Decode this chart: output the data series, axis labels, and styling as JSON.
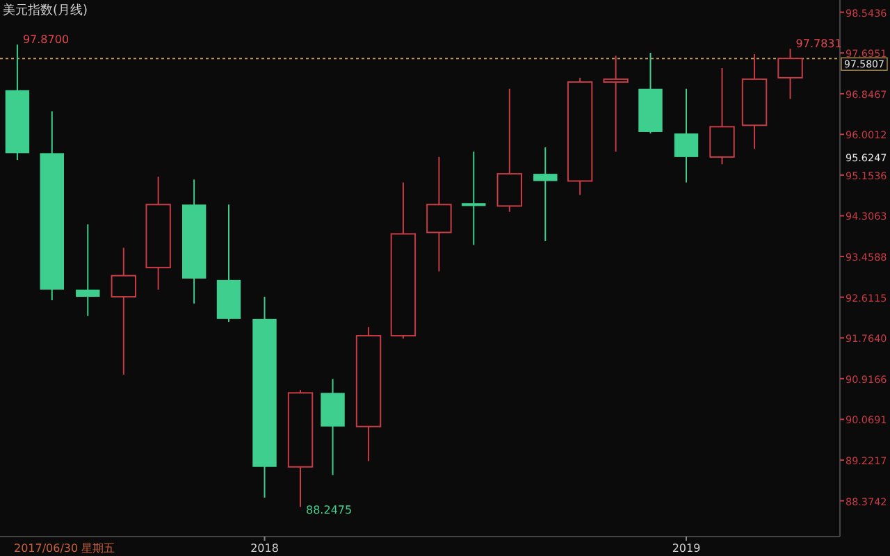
{
  "chart_data": {
    "type": "candlestick",
    "title": "美元指数(月线)",
    "x": [
      "2017-06",
      "2017-07",
      "2017-08",
      "2017-09",
      "2017-10",
      "2017-11",
      "2017-12",
      "2018-01",
      "2018-02",
      "2018-03",
      "2018-04",
      "2018-05",
      "2018-06",
      "2018-07",
      "2018-08",
      "2018-09",
      "2018-10",
      "2018-11",
      "2018-12",
      "2019-01",
      "2019-02",
      "2019-03",
      "2019-04"
    ],
    "ohlc": [
      [
        96.92,
        97.87,
        95.47,
        95.61
      ],
      [
        95.61,
        96.48,
        92.55,
        92.77
      ],
      [
        92.77,
        94.13,
        92.22,
        92.62
      ],
      [
        92.62,
        93.64,
        91.0,
        93.06
      ],
      [
        93.23,
        95.12,
        92.77,
        94.54
      ],
      [
        94.54,
        95.06,
        92.48,
        93.0
      ],
      [
        92.97,
        94.54,
        92.1,
        92.16
      ],
      [
        92.16,
        92.62,
        88.44,
        89.08
      ],
      [
        89.08,
        90.68,
        88.2475,
        90.62
      ],
      [
        90.62,
        90.91,
        88.91,
        89.92
      ],
      [
        89.92,
        91.99,
        89.2,
        91.81
      ],
      [
        91.81,
        95.0,
        91.75,
        93.93
      ],
      [
        93.96,
        95.53,
        93.15,
        94.54
      ],
      [
        94.57,
        95.64,
        93.7,
        94.51
      ],
      [
        94.51,
        96.95,
        94.39,
        95.18
      ],
      [
        95.18,
        95.73,
        93.78,
        95.03
      ],
      [
        95.03,
        97.18,
        94.74,
        97.09
      ],
      [
        97.09,
        97.64,
        95.64,
        97.15
      ],
      [
        96.95,
        97.7,
        96.02,
        96.05
      ],
      [
        96.02,
        96.95,
        95.0,
        95.53
      ],
      [
        95.53,
        97.38,
        95.38,
        96.16
      ],
      [
        96.19,
        97.67,
        95.7,
        97.15
      ],
      [
        97.18,
        97.7831,
        96.74,
        97.5807
      ]
    ],
    "colors": [
      "#3ecf8e",
      "#3ecf8e",
      "#3ecf8e",
      "#c83c46",
      "#c83c46",
      "#3ecf8e",
      "#3ecf8e",
      "#3ecf8e",
      "#c83c46",
      "#3ecf8e",
      "#c83c46",
      "#c83c46",
      "#c83c46",
      "#3ecf8e",
      "#c83c46",
      "#3ecf8e",
      "#c83c46",
      "#c83c46",
      "#3ecf8e",
      "#3ecf8e",
      "#c83c46",
      "#c83c46",
      "#c83c46"
    ],
    "xlim": [
      "2017-05-17",
      "2019-05-14"
    ],
    "xticks": [
      {
        "value": "2018-01",
        "label": "2018"
      },
      {
        "value": "2019-01",
        "label": "2019"
      }
    ],
    "ylim": [
      87.63,
      98.74
    ],
    "yticks": [
      98.5436,
      97.6951,
      96.8467,
      96.0012,
      95.1536,
      94.3063,
      93.4588,
      92.6115,
      {
        "value": 91.764,
        "label": "91.7640"
      },
      90.9166,
      90.0691,
      89.2217,
      88.3742
    ],
    "ref_lines": [
      {
        "axis": "y",
        "value": 97.5807,
        "label": "97.5807",
        "color": "#c8a060",
        "line_style": "dotted"
      }
    ],
    "annotations": [
      {
        "text": "97.8700",
        "x": "2017-06",
        "y": 97.87
      },
      {
        "text": "88.2475",
        "x": "2018-02",
        "y": 88.2475
      },
      {
        "text": "97.7831",
        "x": "2019-04",
        "y": 97.7831
      },
      "95.6247",
      "2017/06/30 星期五"
    ]
  }
}
